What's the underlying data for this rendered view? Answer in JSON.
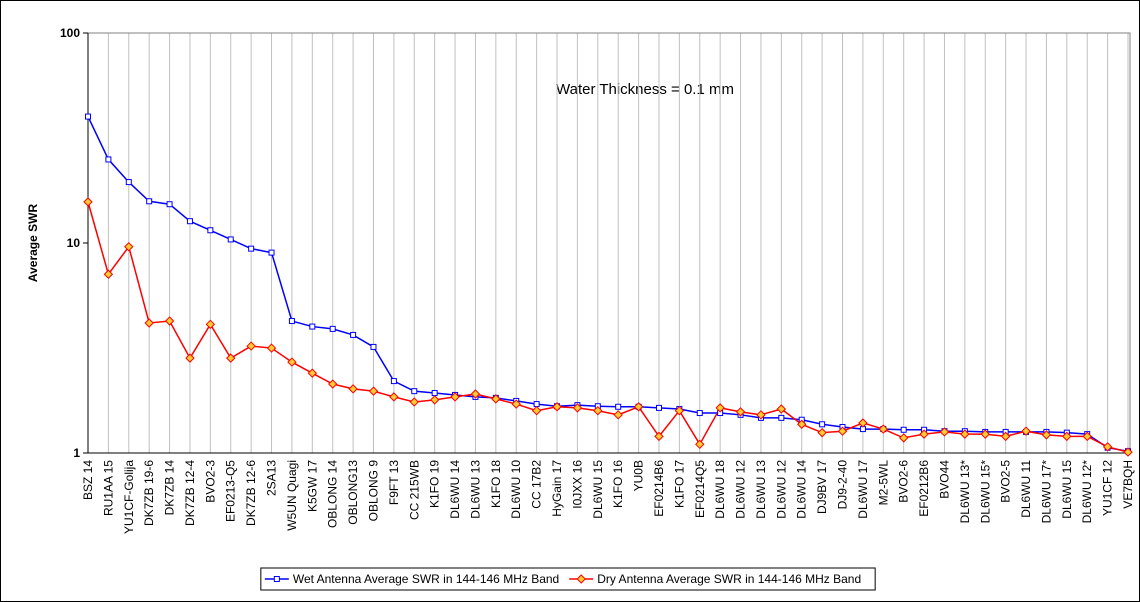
{
  "chart_data": {
    "type": "line",
    "annotation": "Water Thickness = 0.1 mm",
    "y_label": "Average SWR",
    "categories": [
      "BSZ 14",
      "RU1AA 15",
      "YU1CF-Golija",
      "DK7ZB 19-6",
      "DK7ZB 14",
      "DK7ZB 12-4",
      "BVO2-3",
      "EF0213-Q5",
      "DK7ZB 12-6",
      "2SA13",
      "W5UN Quagi",
      "K5GW 17",
      "OBLONG 14",
      "OBLONG13",
      "OBLONG 9",
      "F9FT 13",
      "CC 215WB",
      "K1FO 19",
      "DL6WU 14",
      "DL6WU 13",
      "K1FO 18",
      "DL6WU 10",
      "CC 17B2",
      "HyGain 17",
      "I0JXX 16",
      "DL6WU 15",
      "K1FO 16",
      "YU0B",
      "EF0214B6",
      "K1FO 17",
      "EF0214Q5",
      "DL6WU 18",
      "DL6WU 12",
      "DL6WU 13",
      "DL6WU 12",
      "DL6WU 14",
      "DJ9BV 17",
      "DJ9-2-40",
      "DL6WU 17",
      "M2-5WL",
      "BVO2-6",
      "EF0212B6",
      "BVO44",
      "DL6WU 13*",
      "DL6WU 15*",
      "BVO2-5",
      "DL6WU 11",
      "DL6WU 17*",
      "DL6WU 15",
      "DL6WU 12*",
      "YU1CF 12",
      "VE7BQH"
    ],
    "series": [
      {
        "name": "Wet Antenna Average SWR in 144-146 MHz Band",
        "color": "#0000ff",
        "marker": "square",
        "values": [
          40,
          25,
          19.5,
          15.8,
          15.3,
          12.7,
          11.5,
          10.4,
          9.4,
          9.0,
          4.25,
          4.0,
          3.9,
          3.65,
          3.2,
          2.2,
          1.97,
          1.93,
          1.89,
          1.85,
          1.83,
          1.77,
          1.71,
          1.67,
          1.69,
          1.67,
          1.66,
          1.66,
          1.64,
          1.62,
          1.55,
          1.55,
          1.52,
          1.47,
          1.47,
          1.44,
          1.37,
          1.33,
          1.3,
          1.3,
          1.29,
          1.29,
          1.27,
          1.27,
          1.26,
          1.26,
          1.26,
          1.26,
          1.25,
          1.23,
          1.06,
          1.02
        ]
      },
      {
        "name": "Dry Antenna Average SWR in 144-146 MHz Band",
        "color": "#ff0000",
        "marker": "diamond",
        "values": [
          15.7,
          7.1,
          9.6,
          4.16,
          4.25,
          2.83,
          4.1,
          2.83,
          3.23,
          3.16,
          2.71,
          2.4,
          2.13,
          2.02,
          1.97,
          1.85,
          1.75,
          1.79,
          1.85,
          1.91,
          1.81,
          1.71,
          1.59,
          1.66,
          1.64,
          1.59,
          1.52,
          1.66,
          1.2,
          1.59,
          1.1,
          1.64,
          1.57,
          1.52,
          1.62,
          1.37,
          1.25,
          1.27,
          1.39,
          1.3,
          1.18,
          1.23,
          1.26,
          1.23,
          1.23,
          1.2,
          1.27,
          1.22,
          1.2,
          1.2,
          1.07,
          1.01
        ]
      }
    ],
    "ylim": [
      1,
      100
    ],
    "yticks": [
      1,
      10,
      100
    ],
    "log_y": true,
    "grid": "vertical",
    "legend": "bottom"
  }
}
